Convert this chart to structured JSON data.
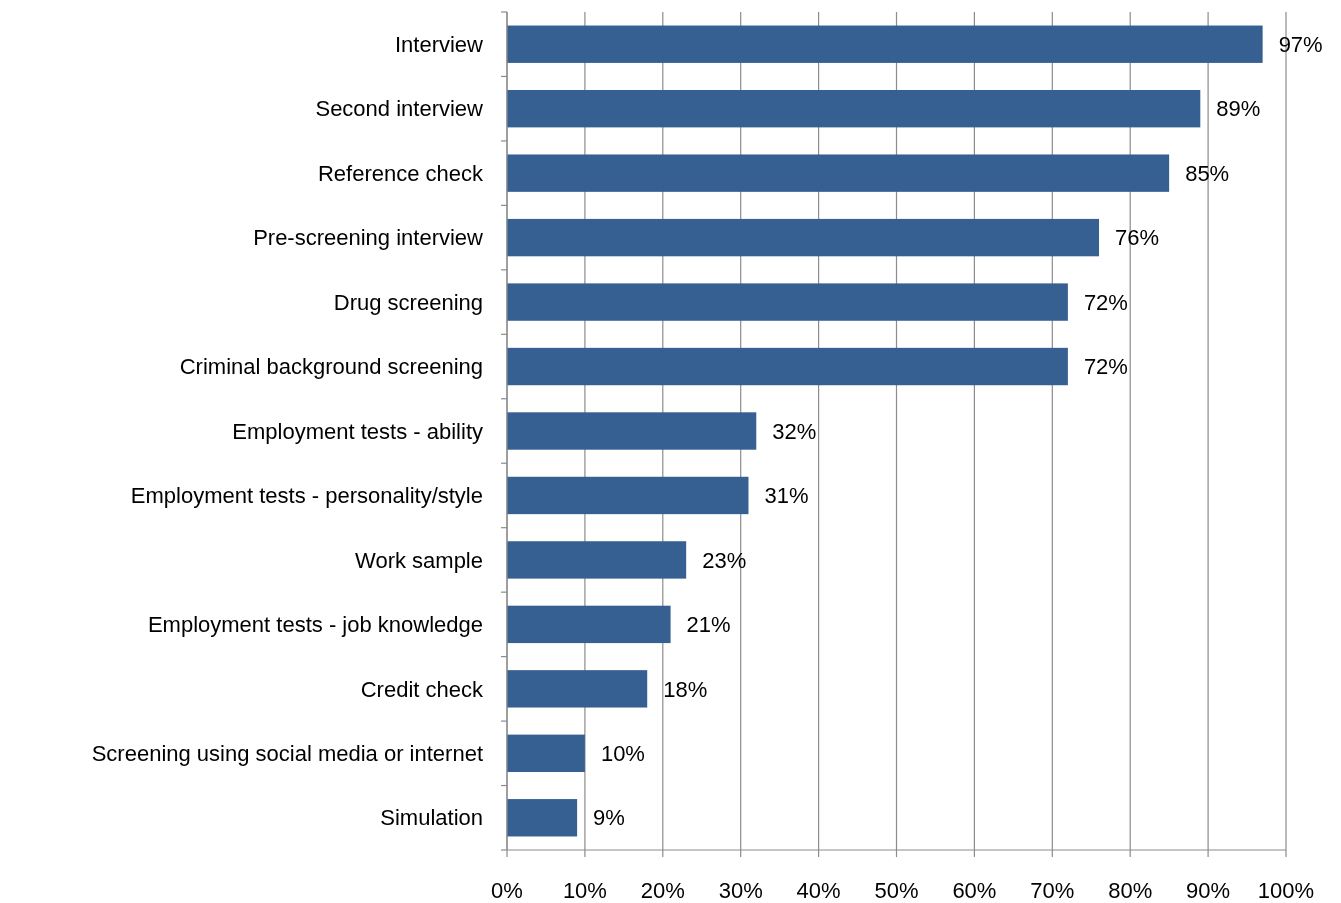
{
  "chart_data": {
    "type": "bar",
    "orientation": "horizontal",
    "categories": [
      "Interview",
      "Second interview",
      "Reference check",
      "Pre-screening interview",
      "Drug screening",
      "Criminal background screening",
      "Employment tests - ability",
      "Employment tests - personality/style",
      "Work sample",
      "Employment tests - job knowledge",
      "Credit check",
      "Screening using social media or internet",
      "Simulation"
    ],
    "values": [
      97,
      89,
      85,
      76,
      72,
      72,
      32,
      31,
      23,
      21,
      18,
      10,
      9
    ],
    "value_labels": [
      "97%",
      "89%",
      "85%",
      "76%",
      "72%",
      "72%",
      "32%",
      "31%",
      "23%",
      "21%",
      "18%",
      "10%",
      "9%"
    ],
    "color": "#376092",
    "xlim": [
      0,
      100
    ],
    "xticks": [
      {
        "value": 0,
        "label": "0%"
      },
      {
        "value": 10,
        "label": "10%"
      },
      {
        "value": 20,
        "label": "20%"
      },
      {
        "value": 30,
        "label": "30%"
      },
      {
        "value": 40,
        "label": "40%"
      },
      {
        "value": 50,
        "label": "50%"
      },
      {
        "value": 60,
        "label": "60%"
      },
      {
        "value": 70,
        "label": "70%"
      },
      {
        "value": 80,
        "label": "80%"
      },
      {
        "value": 90,
        "label": "90%"
      },
      {
        "value": 100,
        "label": "100%"
      }
    ],
    "grid": "x"
  }
}
